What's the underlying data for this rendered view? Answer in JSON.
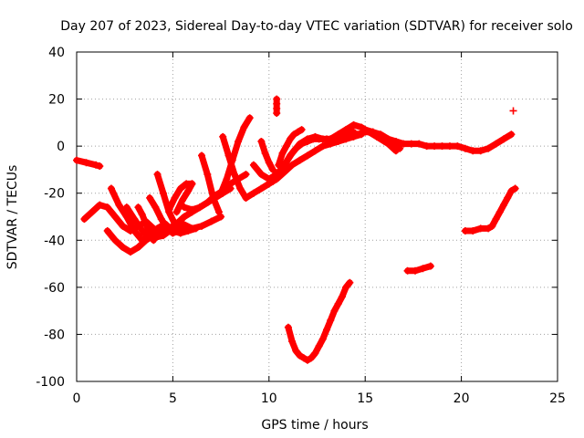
{
  "chart_data": {
    "type": "scatter",
    "title": "Day 207 of 2023, Sidereal Day-to-day VTEC variation (SDTVAR) for receiver solo",
    "xlabel": "GPS time / hours",
    "ylabel": "SDTVAR / TECUs",
    "xlim": [
      0,
      25
    ],
    "ylim": [
      -100,
      40
    ],
    "xticks": [
      "0",
      "5",
      "10",
      "15",
      "20",
      "25"
    ],
    "yticks": [
      "-100",
      "-80",
      "-60",
      "-40",
      "-20",
      "0",
      "20",
      "40"
    ],
    "grid": true,
    "marker_color": "#ff0000",
    "series": [
      {
        "x": [
          0.0,
          0.5,
          1.0,
          1.2
        ],
        "y": [
          -6,
          -7,
          -8,
          -8.5
        ]
      },
      {
        "x": [
          0.4,
          0.8,
          1.2,
          1.6,
          2.0,
          2.4,
          2.8,
          3.2,
          3.6,
          4.0,
          4.4
        ],
        "y": [
          -31,
          -28,
          -25,
          -26,
          -30,
          -34,
          -36,
          -34,
          -32,
          -35,
          -37
        ]
      },
      {
        "x": [
          1.8,
          2.2,
          2.6,
          3.0,
          3.4,
          3.8,
          4.2,
          4.6,
          5.0,
          5.4,
          5.8,
          6.2
        ],
        "y": [
          -18,
          -25,
          -30,
          -36,
          -40,
          -38,
          -35,
          -33,
          -36,
          -37,
          -36,
          -35
        ]
      },
      {
        "x": [
          2.6,
          3.0,
          3.5,
          4.0,
          4.5,
          5.0,
          5.5,
          6.0,
          6.5,
          7.0,
          7.5
        ],
        "y": [
          -26,
          -31,
          -37,
          -39,
          -38,
          -35,
          -33,
          -35,
          -34,
          -32,
          -30
        ]
      },
      {
        "x": [
          1.6,
          2.0,
          2.4,
          2.8,
          3.2,
          3.6,
          4.0,
          4.4,
          4.8,
          5.2,
          5.6,
          6.0,
          6.4,
          6.8,
          7.2,
          7.6,
          8.0,
          8.4,
          8.8
        ],
        "y": [
          -36,
          -40,
          -43,
          -45,
          -43,
          -40,
          -38,
          -36,
          -35,
          -33,
          -30,
          -28,
          -26,
          -24,
          -21,
          -19,
          -16,
          -14,
          -12
        ]
      },
      {
        "x": [
          3.2,
          3.4,
          3.6,
          3.8,
          4.0
        ],
        "y": [
          -26,
          -29,
          -33,
          -37,
          -40
        ]
      },
      {
        "x": [
          3.8,
          4.1,
          4.4,
          4.7,
          5.0,
          5.3
        ],
        "y": [
          -22,
          -26,
          -31,
          -35,
          -37,
          -36
        ]
      },
      {
        "x": [
          4.2,
          4.5,
          4.8,
          5.1,
          5.4,
          5.7
        ],
        "y": [
          -12,
          -20,
          -28,
          -33,
          -35,
          -34
        ]
      },
      {
        "x": [
          4.8,
          5.1,
          5.4,
          5.7,
          6.0
        ],
        "y": [
          -27,
          -22,
          -18,
          -16,
          -16
        ]
      },
      {
        "x": [
          5.2,
          5.5,
          5.8,
          6.0
        ],
        "y": [
          -28,
          -23,
          -19,
          -16
        ]
      },
      {
        "x": [
          5.6,
          6.0,
          6.4,
          6.8,
          7.2,
          7.6,
          8.0
        ],
        "y": [
          -26,
          -27,
          -26,
          -24,
          -22,
          -20,
          -18
        ]
      },
      {
        "x": [
          6.5,
          6.8,
          7.1,
          7.4
        ],
        "y": [
          -4,
          -12,
          -22,
          -28
        ]
      },
      {
        "x": [
          7.6,
          7.9,
          8.2,
          8.5,
          8.8
        ],
        "y": [
          4,
          -4,
          -12,
          -18,
          -22
        ]
      },
      {
        "x": [
          7.5,
          7.8,
          8.1,
          8.4,
          8.7,
          9.0
        ],
        "y": [
          -20,
          -14,
          -6,
          2,
          8,
          12
        ]
      },
      {
        "x": [
          8.8,
          9.2,
          9.6,
          10.0,
          10.4,
          10.8,
          11.2,
          11.6,
          12.0,
          12.4,
          12.8,
          13.2,
          13.6,
          14.0,
          14.4,
          14.8
        ],
        "y": [
          -22,
          -20,
          -18,
          -16,
          -14,
          -11,
          -8,
          -6,
          -4,
          -2,
          0,
          1,
          2,
          3,
          4,
          5
        ]
      },
      {
        "x": [
          9.2,
          9.6,
          10.0,
          10.4,
          10.8,
          11.2,
          11.6,
          12.0,
          12.4,
          12.8,
          13.2,
          13.6,
          14.0,
          14.4
        ],
        "y": [
          -8,
          -12,
          -14,
          -12,
          -8,
          -3,
          1,
          3,
          4,
          3,
          3,
          4,
          5,
          6
        ]
      },
      {
        "x": [
          9.6,
          9.8,
          10.0,
          10.2
        ],
        "y": [
          2,
          -3,
          -7,
          -10
        ]
      },
      {
        "x": [
          10.2,
          10.5,
          10.8,
          11.1,
          11.4,
          11.7,
          12.0,
          12.3,
          12.6,
          13.0,
          13.4,
          13.8,
          14.2,
          14.6,
          15.0,
          15.4,
          15.8,
          16.2,
          16.6,
          17.0,
          17.4,
          17.8,
          18.2,
          18.6,
          19.0,
          19.4,
          19.8,
          20.2,
          20.6,
          21.0,
          21.4,
          21.8,
          22.2,
          22.6
        ],
        "y": [
          -15,
          -12,
          -8,
          -4,
          -1,
          1,
          2,
          3,
          3,
          3,
          3,
          3,
          4,
          5,
          6,
          6,
          5,
          3,
          2,
          1,
          1,
          1,
          0,
          0,
          0,
          0,
          0,
          -1,
          -2,
          -2,
          -1,
          1,
          3,
          5
        ]
      },
      {
        "x": [
          10.5,
          10.7,
          10.9,
          11.1,
          11.3,
          11.5,
          11.7
        ],
        "y": [
          -8,
          -3,
          0,
          3,
          5,
          6,
          7
        ]
      },
      {
        "x": [
          13.2,
          13.6,
          14.0,
          14.4,
          14.8,
          15.2,
          15.6,
          16.0,
          16.4,
          16.8
        ],
        "y": [
          3,
          5,
          7,
          9,
          8,
          6,
          4,
          2,
          0,
          -1
        ]
      },
      {
        "x": [
          15.0,
          15.4,
          15.8,
          16.2,
          16.6
        ],
        "y": [
          7,
          6,
          4,
          1,
          -2
        ]
      },
      {
        "x": [
          10.4,
          10.4,
          10.4,
          10.4
        ],
        "y": [
          20,
          18,
          16,
          14
        ]
      },
      {
        "x": [
          11.0,
          11.2,
          11.4,
          11.6,
          11.8,
          12.0,
          12.2,
          12.4,
          12.6,
          12.8,
          13.0,
          13.2,
          13.4,
          13.6,
          13.8,
          14.0,
          14.2
        ],
        "y": [
          -77,
          -83,
          -87,
          -89,
          -90,
          -91,
          -90,
          -88,
          -85,
          -82,
          -78,
          -74,
          -70,
          -67,
          -64,
          -60,
          -58
        ]
      },
      {
        "x": [
          17.2,
          17.6,
          18.0,
          18.4
        ],
        "y": [
          -53,
          -53,
          -52,
          -51
        ]
      },
      {
        "x": [
          20.2,
          20.6,
          21.0,
          21.4,
          21.6,
          21.8,
          22.0,
          22.2,
          22.4,
          22.6,
          22.8
        ],
        "y": [
          -36,
          -36,
          -35,
          -35,
          -34,
          -31,
          -28,
          -25,
          -22,
          -19,
          -18
        ]
      },
      {
        "x": [
          22.7
        ],
        "y": [
          15
        ]
      }
    ]
  }
}
